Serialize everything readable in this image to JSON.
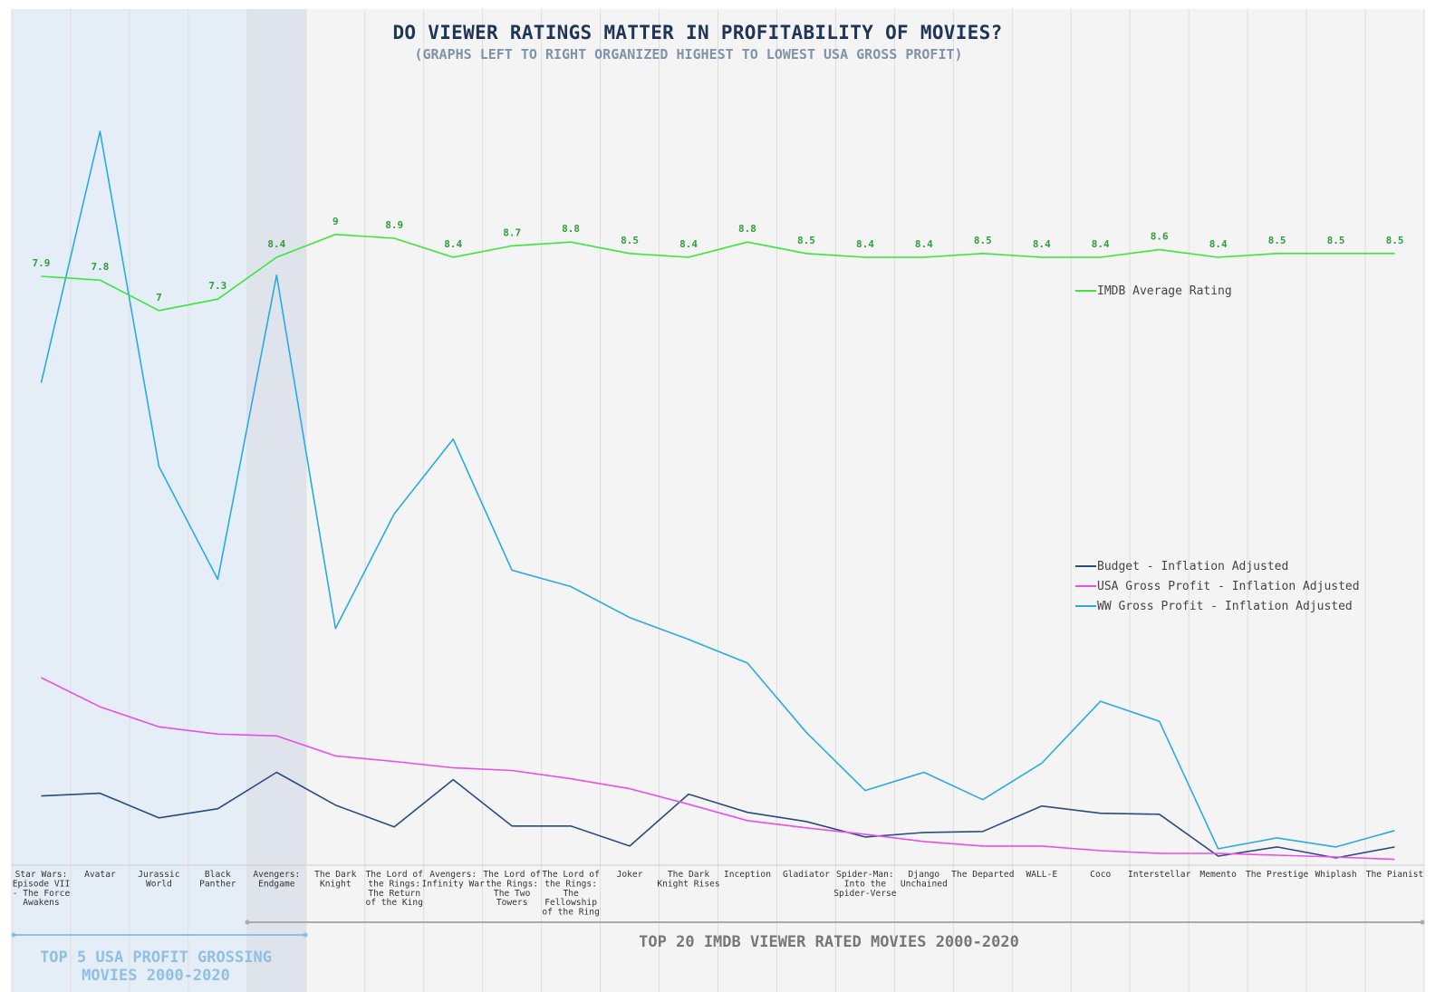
{
  "title": "DO VIEWER RATINGS MATTER IN PROFITABILITY OF MOVIES?",
  "subtitle": "(GRAPHS LEFT TO RIGHT ORGANIZED HIGHEST TO LOWEST USA GROSS PROFIT)",
  "groups": {
    "left_line1": "TOP 5 USA PROFIT GROSSING",
    "left_line2": "MOVIES 2000-2020",
    "right": "TOP 20 IMDB VIEWER RATED MOVIES 2000-2020"
  },
  "colors": {
    "rating": "#39e639",
    "rating_label": "#2e9e3a",
    "budget": "#2b4a7e",
    "usa": "#e84fe8",
    "ww": "#29abe2",
    "plot_bg": "#f4f4f4",
    "left_band": "#e5eef6",
    "highlight_band": "#dfe4ec"
  },
  "chart_data": {
    "type": "line",
    "title": "DO VIEWER RATINGS MATTER IN PROFITABILITY OF MOVIES?",
    "subtitle": "(GRAPHS LEFT TO RIGHT ORGANIZED HIGHEST TO LOWEST USA GROSS PROFIT)",
    "categories": [
      [
        "Star Wars:",
        "Episode VII",
        "- The Force",
        "Awakens"
      ],
      [
        "Avatar"
      ],
      [
        "Jurassic",
        "World"
      ],
      [
        "Black",
        "Panther"
      ],
      [
        "Avengers:",
        "Endgame"
      ],
      [
        "The Dark",
        "Knight"
      ],
      [
        "The Lord of",
        "the Rings:",
        "The Return",
        "of the King"
      ],
      [
        "Avengers:",
        "Infinity War"
      ],
      [
        "The Lord of",
        "the Rings:",
        "The Two",
        "Towers"
      ],
      [
        "The Lord of",
        "the Rings:",
        "The",
        "Fellowship",
        "of the Ring"
      ],
      [
        "Joker"
      ],
      [
        "The Dark",
        "Knight Rises"
      ],
      [
        "Inception"
      ],
      [
        "Gladiator"
      ],
      [
        "Spider-Man:",
        "Into the",
        "Spider-Verse"
      ],
      [
        "Django",
        "Unchained"
      ],
      [
        "The Departed"
      ],
      [
        "WALL-E"
      ],
      [
        "Coco"
      ],
      [
        "Interstellar"
      ],
      [
        "Memento"
      ],
      [
        "The Prestige"
      ],
      [
        "Whiplash"
      ],
      [
        "The Pianist"
      ]
    ],
    "rating_series": {
      "name": "IMDB Average Rating",
      "values": [
        7.9,
        7.8,
        7,
        7.3,
        8.4,
        9,
        8.9,
        8.4,
        8.7,
        8.8,
        8.5,
        8.4,
        8.8,
        8.5,
        8.4,
        8.4,
        8.5,
        8.4,
        8.4,
        8.6,
        8.4,
        8.5,
        8.5,
        8.5
      ]
    },
    "money_series": [
      {
        "name": "Budget - Inflation Adjusted",
        "values": [
          0.35,
          0.365,
          0.23,
          0.28,
          0.48,
          0.3,
          0.18,
          0.44,
          0.185,
          0.185,
          0.075,
          0.36,
          0.26,
          0.21,
          0.125,
          0.15,
          0.155,
          0.295,
          0.255,
          0.25,
          0.02,
          0.07,
          0.01,
          0.07
        ]
      },
      {
        "name": "USA Gross Profit - Inflation Adjusted",
        "values": [
          1.0,
          0.84,
          0.73,
          0.69,
          0.68,
          0.57,
          0.54,
          0.505,
          0.49,
          0.445,
          0.39,
          0.305,
          0.215,
          0.175,
          0.14,
          0.1,
          0.075,
          0.075,
          0.05,
          0.035,
          0.035,
          0.025,
          0.015,
          0.002
        ]
      },
      {
        "name": "WW Gross Profit - Inflation Adjusted",
        "values": [
          2.62,
          4.0,
          2.16,
          1.54,
          3.21,
          1.27,
          1.9,
          2.31,
          1.59,
          1.5,
          1.33,
          1.21,
          1.08,
          0.7,
          0.38,
          0.48,
          0.33,
          0.53,
          0.87,
          0.76,
          0.06,
          0.12,
          0.07,
          0.16
        ]
      }
    ],
    "legend_placement": "right",
    "grid": true
  }
}
